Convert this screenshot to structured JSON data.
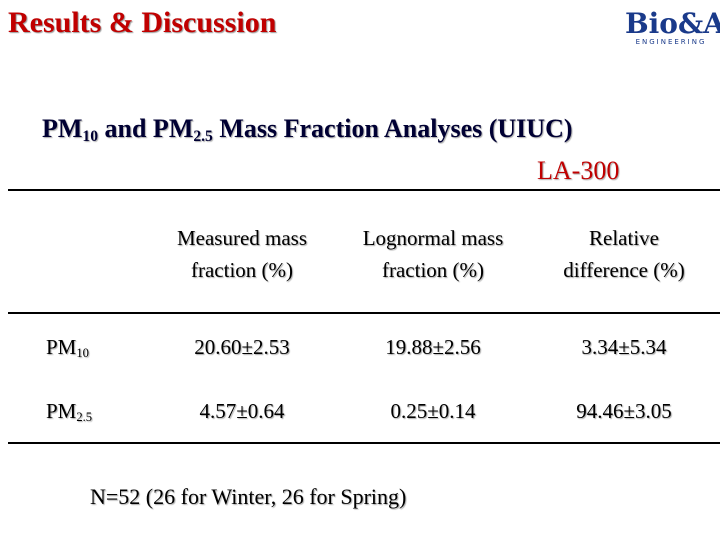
{
  "header": {
    "title": "Results & Discussion",
    "logo": {
      "name": "Bio&Ag",
      "sub": "ENGINEERING"
    }
  },
  "heading": {
    "parts": [
      "PM",
      "10",
      " and PM",
      "2.5",
      " Mass Fraction Analyses (UIUC)"
    ],
    "sample": "LA-300"
  },
  "table": {
    "columns": [
      [
        "Measured mass",
        "fraction (%)"
      ],
      [
        "Lognormal mass",
        "fraction (%)"
      ],
      [
        "Relative",
        "difference (%)"
      ]
    ],
    "rows": [
      {
        "label": {
          "base": "PM",
          "sub": "10"
        },
        "cells": [
          "20.60±2.53",
          "19.88±2.56",
          "3.34±5.34"
        ]
      },
      {
        "label": {
          "base": "PM",
          "sub": "2.5"
        },
        "cells": [
          "4.57±0.64",
          "0.25±0.14",
          "94.46±3.05"
        ]
      }
    ]
  },
  "note": "N=52 (26 for Winter, 26 for Spring)"
}
